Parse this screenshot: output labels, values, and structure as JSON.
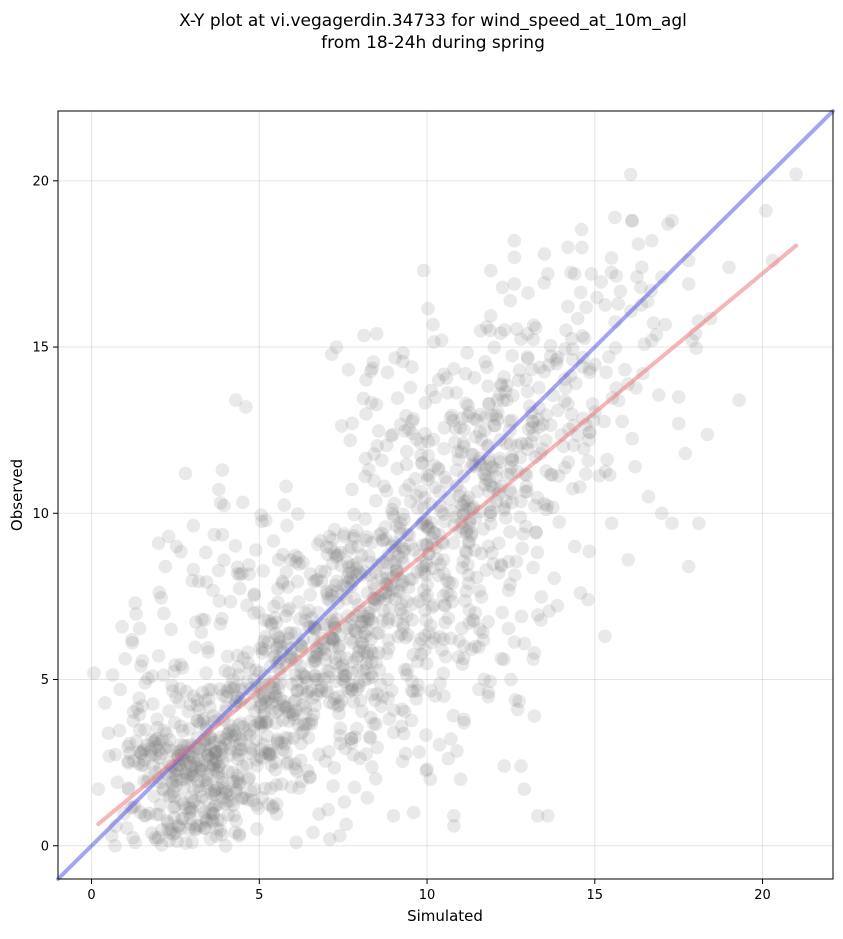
{
  "chart_data": {
    "type": "scatter",
    "title": [
      "X-Y plot at vi.vegagerdin.34733 for wind_speed_at_10m_agl",
      "from 18-24h during spring"
    ],
    "xlabel": "Simulated",
    "ylabel": "Observed",
    "xlim": [
      -1,
      22.1
    ],
    "ylim": [
      -1,
      22.1
    ],
    "xticks": [
      0,
      5,
      10,
      15,
      20
    ],
    "yticks": [
      0,
      5,
      10,
      15,
      20
    ],
    "grid": true,
    "point_color": "#777777",
    "identity_line": {
      "x": [
        -1,
        22.1
      ],
      "y": [
        -1,
        22.1
      ],
      "color": "#5a5af0"
    },
    "fit_line": {
      "x": [
        0.2,
        21.0
      ],
      "y": [
        0.65,
        18.05
      ],
      "color": "#f07878"
    },
    "outlier_points": [
      [
        21.0,
        20.2
      ],
      [
        20.1,
        19.1
      ],
      [
        20.3,
        17.6
      ],
      [
        19.0,
        17.4
      ],
      [
        19.3,
        13.4
      ],
      [
        18.1,
        9.7
      ],
      [
        17.8,
        17.6
      ],
      [
        17.8,
        16.9
      ],
      [
        17.9,
        15.2
      ],
      [
        17.3,
        18.8
      ],
      [
        17.0,
        17.1
      ],
      [
        16.7,
        18.2
      ],
      [
        16.3,
        18.1
      ],
      [
        16.1,
        18.8
      ],
      [
        15.6,
        18.9
      ],
      [
        16.4,
        17.4
      ],
      [
        17.5,
        13.5
      ],
      [
        17.7,
        11.8
      ],
      [
        17.0,
        10.0
      ],
      [
        17.8,
        8.4
      ],
      [
        16.0,
        8.6
      ],
      [
        17.3,
        9.7
      ],
      [
        15.3,
        6.3
      ],
      [
        14.8,
        7.4
      ],
      [
        12.6,
        18.2
      ],
      [
        12.6,
        17.7
      ],
      [
        12.6,
        16.9
      ],
      [
        13.5,
        17.8
      ],
      [
        13.6,
        17.2
      ],
      [
        14.2,
        18.0
      ],
      [
        11.9,
        17.3
      ],
      [
        9.9,
        17.3
      ],
      [
        8.5,
        15.4
      ],
      [
        7.3,
        15.0
      ],
      [
        4.3,
        13.4
      ],
      [
        4.6,
        13.2
      ],
      [
        2.8,
        11.2
      ],
      [
        3.9,
        11.3
      ],
      [
        2.3,
        9.3
      ],
      [
        2.0,
        9.1
      ],
      [
        2.2,
        8.4
      ],
      [
        1.3,
        7.3
      ],
      [
        0.4,
        4.3
      ],
      [
        0.2,
        1.7
      ],
      [
        0.6,
        0.3
      ],
      [
        0.7,
        0.0
      ],
      [
        1.3,
        0.1
      ],
      [
        3.0,
        0.1
      ],
      [
        4.0,
        0.0
      ],
      [
        4.4,
        0.3
      ],
      [
        6.1,
        0.1
      ],
      [
        6.6,
        0.4
      ],
      [
        7.1,
        0.2
      ],
      [
        7.4,
        0.3
      ],
      [
        9.6,
        1.0
      ],
      [
        10.0,
        2.3
      ],
      [
        10.1,
        2.0
      ],
      [
        11.0,
        2.0
      ],
      [
        11.1,
        3.8
      ],
      [
        10.5,
        4.5
      ],
      [
        12.3,
        2.4
      ],
      [
        12.8,
        2.4
      ],
      [
        12.9,
        1.7
      ],
      [
        13.3,
        0.9
      ],
      [
        13.6,
        0.9
      ],
      [
        13.2,
        3.9
      ],
      [
        13.2,
        5.8
      ],
      [
        12.7,
        4.1
      ],
      [
        12.5,
        5.0
      ],
      [
        10.8,
        0.6
      ],
      [
        10.8,
        0.9
      ],
      [
        9.0,
        0.9
      ],
      [
        14.4,
        9.0
      ],
      [
        15.5,
        9.7
      ],
      [
        16.2,
        11.4
      ],
      [
        16.6,
        10.5
      ],
      [
        17.5,
        12.7
      ],
      [
        18.0,
        15.4
      ],
      [
        15.7,
        16.3
      ],
      [
        14.9,
        17.2
      ],
      [
        14.4,
        17.2
      ],
      [
        16.7,
        15.2
      ]
    ],
    "clusters": [
      {
        "x": 3.0,
        "y": 1.8,
        "sx": 1.1,
        "sy": 1.0,
        "r": 0.0,
        "n": 230
      },
      {
        "x": 4.6,
        "y": 3.9,
        "sx": 1.5,
        "sy": 1.6,
        "r": 0.6,
        "n": 260
      },
      {
        "x": 6.6,
        "y": 6.0,
        "sx": 1.6,
        "sy": 1.8,
        "r": 0.55,
        "n": 240
      },
      {
        "x": 9.0,
        "y": 8.2,
        "sx": 1.7,
        "sy": 2.1,
        "r": 0.5,
        "n": 220
      },
      {
        "x": 11.2,
        "y": 10.6,
        "sx": 1.6,
        "sy": 2.2,
        "r": 0.45,
        "n": 200
      },
      {
        "x": 13.4,
        "y": 12.8,
        "sx": 1.5,
        "sy": 2.0,
        "r": 0.3,
        "n": 120
      },
      {
        "x": 1.5,
        "y": 3.4,
        "sx": 0.7,
        "sy": 1.6,
        "r": 0.0,
        "n": 60
      },
      {
        "x": 8.1,
        "y": 3.4,
        "sx": 1.2,
        "sy": 1.3,
        "r": 0.1,
        "n": 70
      },
      {
        "x": 11.4,
        "y": 6.0,
        "sx": 1.3,
        "sy": 1.4,
        "r": 0.2,
        "n": 70
      },
      {
        "x": 4.5,
        "y": 8.0,
        "sx": 1.2,
        "sy": 1.4,
        "r": 0.2,
        "n": 60
      },
      {
        "x": 9.6,
        "y": 13.3,
        "sx": 1.1,
        "sy": 1.3,
        "r": 0.1,
        "n": 50
      },
      {
        "x": 15.2,
        "y": 14.8,
        "sx": 1.3,
        "sy": 1.6,
        "r": 0.2,
        "n": 50
      }
    ]
  }
}
